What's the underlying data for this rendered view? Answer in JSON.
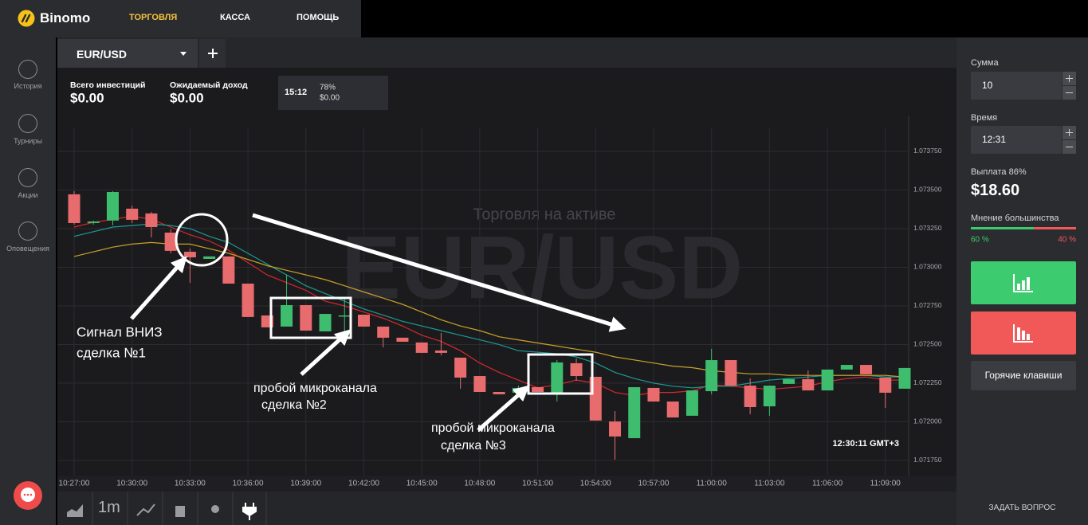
{
  "nav": {
    "logo": "Binomo",
    "items": [
      "ТОРГОВЛЯ",
      "КАССА",
      "ПОМОЩЬ"
    ]
  },
  "sidebar": [
    "История",
    "Турниры",
    "Акции",
    "Оповещения"
  ],
  "tab": {
    "asset": "EUR/USD"
  },
  "stats": {
    "invest_label": "Всего инвестиций",
    "invest": "$0.00",
    "income_label": "Ожидаемый доход",
    "income": "$0.00",
    "deal_time": "15:12",
    "deal_percent": "78%",
    "deal_amount": "$0.00"
  },
  "watermark": {
    "subtitle": "Торговля на активе",
    "asset": "EUR/USD"
  },
  "chart_data": {
    "type": "candlestick",
    "categories": [
      "10:27:00",
      null,
      null,
      "10:30:00",
      null,
      null,
      "10:33:00",
      null,
      null,
      "10:36:00",
      null,
      null,
      "10:39:00",
      null,
      null,
      "10:42:00",
      null,
      null,
      "10:45:00",
      null,
      null,
      "10:48:00",
      null,
      null,
      "10:51:00",
      null,
      null,
      "10:54:00",
      null,
      null,
      "10:57:00",
      null,
      null,
      "11:00:00",
      null,
      null,
      "11:03:00",
      null,
      null,
      "11:06:00",
      null,
      null,
      "11:09:00",
      null
    ],
    "open": [
      1.073472,
      1.073286,
      1.073302,
      1.073379,
      1.073348,
      1.073224,
      1.0731,
      1.073054,
      1.07307,
      1.072894,
      1.072688,
      1.072616,
      1.072755,
      1.072585,
      1.072683,
      1.072693,
      1.072616,
      1.072544,
      1.072513,
      1.072461,
      1.072415,
      1.072296,
      1.072193,
      1.072188,
      1.072224,
      1.072188,
      1.072379,
      1.072291,
      1.072002,
      1.071894,
      1.072219,
      1.072131,
      1.072039,
      1.072198,
      1.072399,
      1.072234,
      1.0721,
      1.072245,
      1.072276,
      1.072203,
      1.072338,
      1.072368,
      1.072286,
      1.072214
    ],
    "high": [
      1.073492,
      1.073302,
      1.073492,
      1.073399,
      1.073358,
      1.073245,
      1.073121,
      1.07307,
      1.07307,
      1.072894,
      1.072688,
      1.072951,
      1.072755,
      1.072698,
      1.072796,
      1.072693,
      1.072616,
      1.072544,
      1.072513,
      1.072575,
      1.072415,
      1.072296,
      1.072193,
      1.072234,
      1.072224,
      1.072399,
      1.07241,
      1.072291,
      1.072069,
      1.072224,
      1.072219,
      1.072131,
      1.072203,
      1.072472,
      1.072399,
      1.072281,
      1.072234,
      1.072276,
      1.072332,
      1.072338,
      1.072368,
      1.072368,
      1.072286,
      1.072348
    ],
    "low": [
      1.073276,
      1.073276,
      1.073271,
      1.073286,
      1.073193,
      1.07309,
      1.072899,
      1.073054,
      1.072894,
      1.072678,
      1.072611,
      1.072616,
      1.07259,
      1.072585,
      1.072564,
      1.072616,
      1.072482,
      1.072518,
      1.072446,
      1.07243,
      1.072214,
      1.072193,
      1.072178,
      1.072178,
      1.072193,
      1.072131,
      1.072265,
      1.072008,
      1.071755,
      1.071894,
      1.072131,
      1.072028,
      1.072039,
      1.072178,
      1.072234,
      1.072049,
      1.072039,
      1.072245,
      1.072203,
      1.072203,
      1.072338,
      1.072307,
      1.07209,
      1.072214
    ],
    "close": [
      1.073286,
      1.073296,
      1.073487,
      1.073307,
      1.07326,
      1.073106,
      1.073064,
      1.07307,
      1.072894,
      1.072678,
      1.072611,
      1.072755,
      1.07259,
      1.072698,
      1.072688,
      1.072616,
      1.072544,
      1.072518,
      1.072446,
      1.072446,
      1.072286,
      1.072193,
      1.072178,
      1.072219,
      1.072193,
      1.072384,
      1.072296,
      1.072008,
      1.071905,
      1.072224,
      1.072131,
      1.072028,
      1.072203,
      1.072399,
      1.072234,
      1.072095,
      1.072234,
      1.072276,
      1.072203,
      1.072338,
      1.072368,
      1.072307,
      1.072188,
      1.072348
    ],
    "up_color": "#3dbd6d",
    "down_color": "#e86c6e",
    "moving_averages": [
      {
        "color": "#d9262d",
        "values": [
          1.07326,
          1.07329,
          1.07331,
          1.07333,
          1.07331,
          1.07326,
          1.07321,
          1.07317,
          1.07311,
          1.07303,
          1.07295,
          1.0729,
          1.07285,
          1.07278,
          1.07275,
          1.07271,
          1.07267,
          1.07262,
          1.07256,
          1.07252,
          1.07246,
          1.07238,
          1.07232,
          1.07227,
          1.07222,
          1.07224,
          1.07227,
          1.07225,
          1.07219,
          1.07217,
          1.07219,
          1.07219,
          1.0722,
          1.07224,
          1.07223,
          1.07222,
          1.07221,
          1.07222,
          1.07223,
          1.07226,
          1.07228,
          1.07229,
          1.07227,
          1.07227
        ]
      },
      {
        "color": "#1a9c91",
        "values": [
          1.0732,
          1.07323,
          1.07326,
          1.07327,
          1.07328,
          1.07327,
          1.07325,
          1.0732,
          1.07316,
          1.07309,
          1.07302,
          1.07295,
          1.07288,
          1.07283,
          1.07278,
          1.07273,
          1.07269,
          1.07265,
          1.07262,
          1.07259,
          1.07256,
          1.07253,
          1.0725,
          1.07246,
          1.07245,
          1.07244,
          1.07242,
          1.07238,
          1.07232,
          1.07228,
          1.07225,
          1.07223,
          1.07222,
          1.07223,
          1.07223,
          1.07225,
          1.07227,
          1.07228,
          1.07229,
          1.0723,
          1.0723,
          1.0723,
          1.07229,
          1.07229
        ]
      },
      {
        "color": "#c9a227",
        "values": [
          1.07307,
          1.0731,
          1.07313,
          1.07315,
          1.07316,
          1.07315,
          1.07315,
          1.07312,
          1.07309,
          1.07305,
          1.07301,
          1.07298,
          1.07295,
          1.07292,
          1.07288,
          1.07284,
          1.0728,
          1.07276,
          1.07271,
          1.07266,
          1.07262,
          1.07259,
          1.07255,
          1.07253,
          1.07251,
          1.07249,
          1.07247,
          1.07245,
          1.07242,
          1.0724,
          1.07238,
          1.07236,
          1.07235,
          1.07233,
          1.07232,
          1.07231,
          1.07231,
          1.0723,
          1.0723,
          1.0723,
          1.0723,
          1.0723,
          1.0723,
          1.07229
        ]
      }
    ],
    "ylim": [
      1.071662,
      1.073956
    ],
    "yticks": [
      {
        "value": 1.07375,
        "label": "1.073750"
      },
      {
        "value": 1.0735,
        "label": "1.073500"
      },
      {
        "value": 1.07325,
        "label": "1.073250"
      },
      {
        "value": 1.073,
        "label": "1.073000"
      },
      {
        "value": 1.07275,
        "label": "1.072750"
      },
      {
        "value": 1.0725,
        "label": "1.072500"
      },
      {
        "value": 1.07225,
        "label": "1.072250"
      },
      {
        "value": 1.072,
        "label": "1.072000"
      },
      {
        "value": 1.07175,
        "label": "1.071750"
      }
    ],
    "grid": true
  },
  "annotations": [
    "Сигнал ВНИЗ",
    "сделка №1",
    "пробой микроканала",
    "сделка №2",
    "пробой микроканала",
    "сделка №3"
  ],
  "server_time": "12:30:11 GMT+3",
  "toolbar": {
    "timeframe": "1m"
  },
  "panel": {
    "amount_label": "Сумма",
    "amount": "10",
    "time_label": "Время",
    "time": "12:31",
    "payout_label": "Выплата 86%",
    "payout": "$18.60",
    "opinion_label": "Мнение большинства",
    "opinion": {
      "up": 60,
      "down": 40,
      "up_label": "60 %",
      "down_label": "40 %"
    },
    "hotkeys": "Горячие клавиши",
    "ask": "ЗАДАТЬ ВОПРОС"
  }
}
